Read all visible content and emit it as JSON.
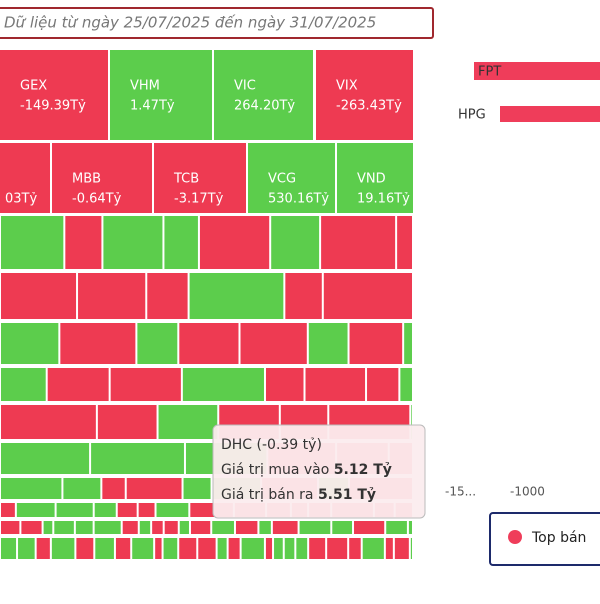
{
  "header": {
    "subtitle": "Dữ liệu từ ngày 25/07/2025 đến ngày 31/07/2025"
  },
  "treemap": {
    "tiles": [
      {
        "label": "GEX",
        "value": "-149.39Tỷ"
      },
      {
        "label": "VHM",
        "value": "1.47Tỷ"
      },
      {
        "label": "VIC",
        "value": "264.20Tỷ"
      },
      {
        "label": "VIX",
        "value": "-263.43Tỷ"
      },
      {
        "value": "03Tỷ"
      },
      {
        "label": "MBB",
        "value": "-0.64Tỷ"
      },
      {
        "label": "TCB",
        "value": "-3.17Tỷ"
      },
      {
        "label": "VCG",
        "value": "530.16Tỷ"
      },
      {
        "label": "VND",
        "value": "19.16Tỷ"
      }
    ]
  },
  "tooltip": {
    "title": "DHC (-0.39 tỷ)",
    "rows": [
      {
        "label": "Giá trị mua vào",
        "value": "5.12 Tỷ"
      },
      {
        "label": "Giá trị bán ra",
        "value": "5.51 Tỷ"
      }
    ]
  },
  "side_chart": {
    "bars": [
      {
        "label": "FPT"
      },
      {
        "label": "HPG"
      }
    ],
    "axis": [
      "-15...",
      "-1000"
    ],
    "legend": "Top bán"
  }
}
